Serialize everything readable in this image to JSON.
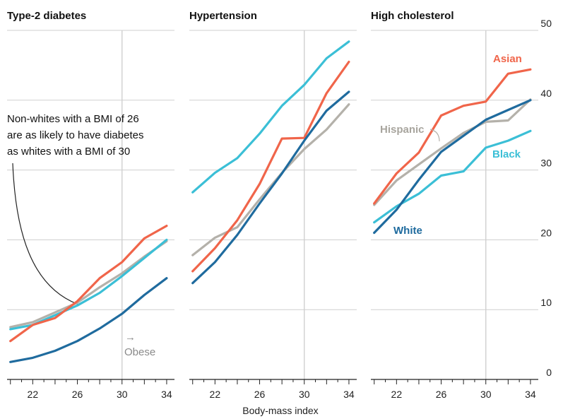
{
  "chart_data": {
    "type": "line",
    "x": [
      20,
      22,
      24,
      26,
      28,
      30,
      32,
      34
    ],
    "xticks": [
      22,
      26,
      30,
      34
    ],
    "xlim": [
      19.7,
      34.7
    ],
    "ylim": [
      0,
      50
    ],
    "yticks": [
      0,
      10,
      20,
      30,
      40,
      50
    ],
    "y_tick_labels": [
      "0",
      "10",
      "20",
      "30",
      "40",
      "50"
    ],
    "x_tick_labels": [
      "22",
      "26",
      "30",
      "34"
    ],
    "xlabel": "Body-mass index",
    "colors": {
      "White": "#1f6b9e",
      "Black": "#3bbfd6",
      "Hispanic": "#b4b1aa",
      "Asian": "#f0654a"
    },
    "panels": [
      {
        "title": "Type-2 diabetes",
        "series": [
          {
            "name": "Hispanic",
            "values": [
              7.5,
              8.2,
              9.6,
              11.0,
              13.2,
              15.2,
              17.6,
              19.8
            ]
          },
          {
            "name": "Black",
            "values": [
              7.2,
              7.8,
              9.2,
              10.6,
              12.4,
              14.8,
              17.4,
              20.0
            ]
          },
          {
            "name": "Asian",
            "values": [
              5.5,
              7.8,
              8.8,
              11.2,
              14.5,
              16.8,
              20.2,
              22.0
            ]
          },
          {
            "name": "White",
            "values": [
              2.5,
              3.1,
              4.1,
              5.5,
              7.3,
              9.4,
              12.1,
              14.5
            ]
          }
        ]
      },
      {
        "title": "Hypertension",
        "series": [
          {
            "name": "Black",
            "values": [
              26.8,
              29.6,
              31.7,
              35.2,
              39.2,
              42.2,
              46.0,
              48.4
            ]
          },
          {
            "name": "Hispanic",
            "values": [
              17.8,
              20.3,
              21.8,
              25.8,
              29.6,
              33.0,
              35.8,
              39.4
            ]
          },
          {
            "name": "Asian",
            "values": [
              15.5,
              18.8,
              22.8,
              28.0,
              34.5,
              34.6,
              41.0,
              45.5
            ]
          },
          {
            "name": "White",
            "values": [
              13.8,
              16.8,
              20.7,
              25.2,
              29.5,
              34.2,
              38.5,
              41.2
            ]
          }
        ]
      },
      {
        "title": "High cholesterol",
        "series": [
          {
            "name": "Hispanic",
            "values": [
              25.0,
              28.5,
              30.8,
              33.1,
              35.3,
              36.9,
              37.1,
              40.1
            ]
          },
          {
            "name": "Black",
            "values": [
              22.5,
              24.8,
              26.6,
              29.2,
              29.8,
              33.2,
              34.2,
              35.6
            ]
          },
          {
            "name": "Asian",
            "values": [
              25.2,
              29.5,
              32.5,
              37.8,
              39.2,
              39.8,
              43.8,
              44.4
            ]
          },
          {
            "name": "White",
            "values": [
              21.0,
              24.3,
              28.6,
              32.6,
              34.9,
              37.2,
              38.6,
              40.0
            ]
          }
        ]
      }
    ],
    "labels": {
      "asian": "Asian",
      "hispanic": "Hispanic",
      "black": "Black",
      "white": "White"
    },
    "annotations": {
      "bmi_note": [
        "Non-whites with a BMI of 26",
        "are as likely to have diabetes",
        "as whites with a BMI of 30"
      ],
      "obese_arrow": "→",
      "obese_text": "Obese",
      "obese_threshold_bmi": 30
    }
  }
}
